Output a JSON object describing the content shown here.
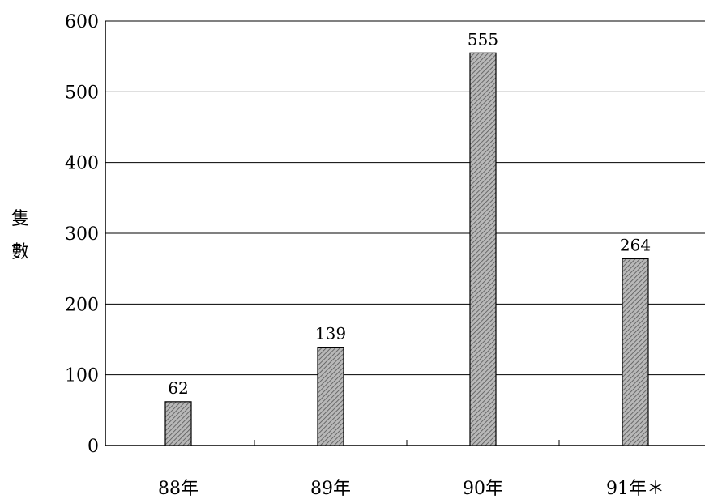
{
  "chart_data": {
    "type": "bar",
    "categories": [
      "88年",
      "89年",
      "90年",
      "91年＊"
    ],
    "values": [
      62,
      139,
      555,
      264
    ],
    "value_labels": [
      "62",
      "139",
      "555",
      "264"
    ],
    "ylabel": "隻數",
    "ylim": [
      0,
      600
    ],
    "yticks": [
      0,
      100,
      200,
      300,
      400,
      500,
      600
    ],
    "ytick_labels": [
      "0",
      "100",
      "200",
      "300",
      "400",
      "500",
      "600"
    ],
    "grid": true,
    "bar_color": "#8a8a8a",
    "legend": "none"
  }
}
